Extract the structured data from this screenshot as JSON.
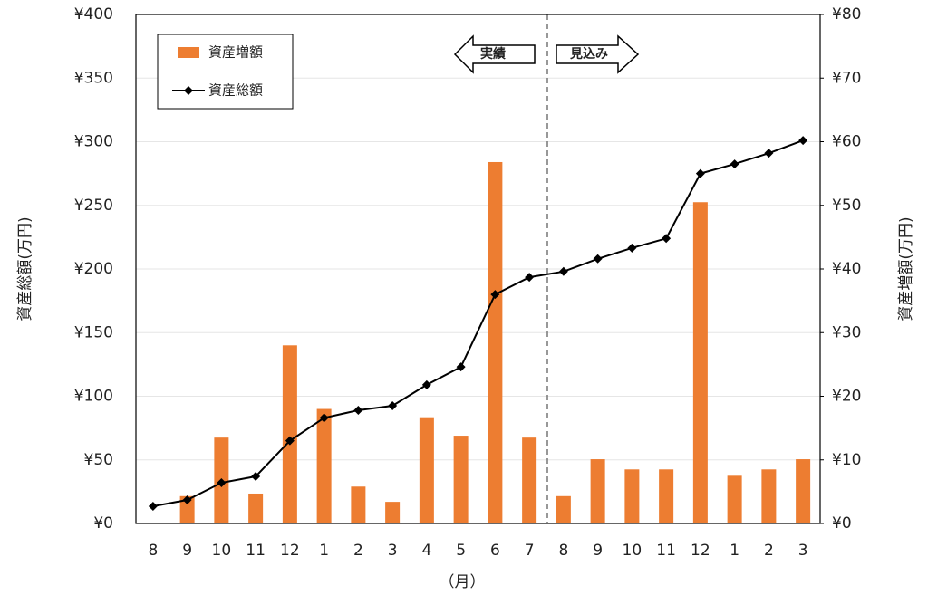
{
  "chart_data": {
    "type": "bar-line",
    "categories": [
      "8",
      "9",
      "10",
      "11",
      "12",
      "1",
      "2",
      "3",
      "4",
      "5",
      "6",
      "7",
      "8",
      "9",
      "10",
      "11",
      "12",
      "1",
      "2",
      "3"
    ],
    "series": [
      {
        "name": "資産増額",
        "type": "bar",
        "axis": "y2",
        "color": "#ed7d31",
        "values": [
          null,
          4.3,
          13.5,
          4.7,
          28,
          18,
          5.8,
          3.4,
          16.7,
          13.8,
          56.8,
          13.5,
          4.3,
          10.1,
          8.5,
          8.5,
          50.5,
          7.5,
          8.5,
          10.1
        ]
      },
      {
        "name": "資産総額",
        "type": "line",
        "axis": "y",
        "color": "#000000",
        "values": [
          13.5,
          18.5,
          32,
          37,
          65,
          83,
          89,
          92.5,
          109,
          123,
          180,
          193.5,
          198,
          208,
          216.5,
          224,
          275,
          282.5,
          291,
          301
        ]
      }
    ],
    "ylim": [
      0,
      400
    ],
    "yticks": [
      {
        "value": 0,
        "label": "¥0"
      },
      {
        "value": 50,
        "label": "¥50"
      },
      {
        "value": 100,
        "label": "¥100"
      },
      {
        "value": 150,
        "label": "¥150"
      },
      {
        "value": 200,
        "label": "¥200"
      },
      {
        "value": 250,
        "label": "¥250"
      },
      {
        "value": 300,
        "label": "¥300"
      },
      {
        "value": 350,
        "label": "¥350"
      },
      {
        "value": 400,
        "label": "¥400"
      }
    ],
    "y2lim": [
      0,
      80
    ],
    "y2ticks": [
      {
        "value": 0,
        "label": "¥0"
      },
      {
        "value": 10,
        "label": "¥10"
      },
      {
        "value": 20,
        "label": "¥20"
      },
      {
        "value": 30,
        "label": "¥30"
      },
      {
        "value": 40,
        "label": "¥40"
      },
      {
        "value": 50,
        "label": "¥50"
      },
      {
        "value": 60,
        "label": "¥60"
      },
      {
        "value": 70,
        "label": "¥70"
      },
      {
        "value": 80,
        "label": "¥80"
      }
    ],
    "y_label": "資産総額(万円)",
    "y2_label": "資産増額(万円)",
    "x_label": "（月）",
    "annotations": [
      "実績",
      "見込み"
    ],
    "grid": true,
    "legend": "upper left"
  }
}
